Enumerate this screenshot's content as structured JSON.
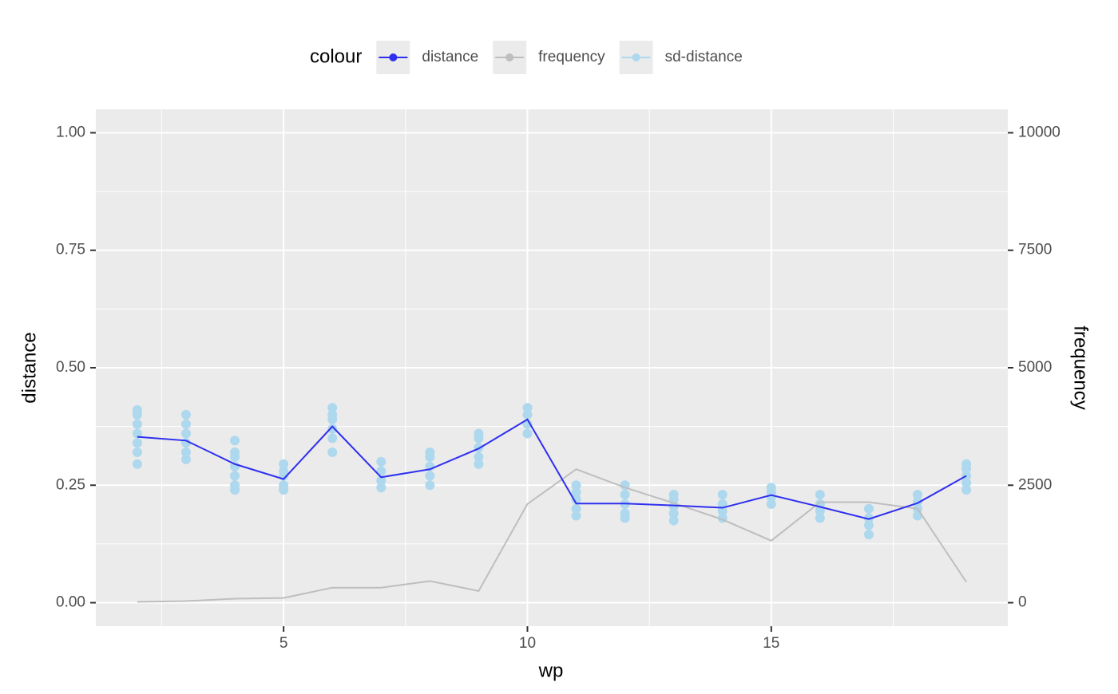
{
  "chart_data": {
    "type": "line",
    "x_label": "wp",
    "y_label": "distance",
    "y2_label": "frequency",
    "legend_title": "colour",
    "legend": "top",
    "grid": true,
    "xlim": [
      1.15,
      19.85
    ],
    "xticks": [
      5,
      10,
      15
    ],
    "ylim": [
      -0.05,
      1.05
    ],
    "yticks": [
      {
        "value": 0,
        "label": "0.00"
      },
      {
        "value": 0.25,
        "label": "0.25"
      },
      {
        "value": 0.5,
        "label": "0.50"
      },
      {
        "value": 0.75,
        "label": "0.75"
      },
      {
        "value": 1,
        "label": "1.00"
      }
    ],
    "y2lim": [
      -500,
      10500
    ],
    "y2ticks": [
      0,
      2500,
      5000,
      7500,
      10000
    ],
    "series": [
      {
        "name": "distance",
        "color": "#2f2ff0",
        "x": [
          2,
          3,
          4,
          5,
          6,
          7,
          8,
          9,
          10,
          11,
          12,
          13,
          14,
          15,
          16,
          17,
          18,
          19
        ],
        "values": [
          0.353,
          0.345,
          0.295,
          0.263,
          0.375,
          0.267,
          0.284,
          0.328,
          0.39,
          0.211,
          0.211,
          0.207,
          0.202,
          0.229,
          0.204,
          0.178,
          0.212,
          0.27
        ]
      },
      {
        "name": "frequency",
        "color": "#bebebe",
        "axis": "y2",
        "x": [
          2,
          3,
          4,
          5,
          6,
          7,
          8,
          9,
          10,
          11,
          12,
          13,
          14,
          15,
          16,
          17,
          18,
          19
        ],
        "values": [
          17,
          34,
          85,
          100,
          320,
          320,
          460,
          250,
          2100,
          2840,
          2450,
          2120,
          1770,
          1320,
          2140,
          2140,
          2000,
          440
        ]
      },
      {
        "name": "sd-distance",
        "color": "#add8ee",
        "type": "scatter",
        "x": [
          2,
          2,
          2,
          2,
          2,
          2,
          2,
          3,
          3,
          3,
          3,
          3,
          3,
          4,
          4,
          4,
          4,
          4,
          4,
          4,
          5,
          5,
          5,
          5,
          5,
          6,
          6,
          6,
          6,
          6,
          6,
          7,
          7,
          7,
          7,
          8,
          8,
          8,
          8,
          8,
          9,
          9,
          9,
          9,
          9,
          10,
          10,
          10,
          10,
          11,
          11,
          11,
          11,
          11,
          12,
          12,
          12,
          12,
          12,
          13,
          13,
          13,
          13,
          13,
          14,
          14,
          14,
          14,
          15,
          15,
          15,
          15,
          16,
          16,
          16,
          16,
          17,
          17,
          17,
          17,
          18,
          18,
          18,
          18,
          19,
          19,
          19,
          19,
          19
        ],
        "values": [
          0.295,
          0.32,
          0.34,
          0.36,
          0.38,
          0.4,
          0.41,
          0.305,
          0.32,
          0.34,
          0.36,
          0.38,
          0.4,
          0.24,
          0.25,
          0.27,
          0.29,
          0.31,
          0.32,
          0.345,
          0.24,
          0.25,
          0.27,
          0.28,
          0.295,
          0.32,
          0.35,
          0.37,
          0.39,
          0.4,
          0.415,
          0.245,
          0.26,
          0.28,
          0.3,
          0.25,
          0.27,
          0.29,
          0.31,
          0.32,
          0.295,
          0.31,
          0.33,
          0.35,
          0.36,
          0.36,
          0.38,
          0.4,
          0.415,
          0.185,
          0.2,
          0.22,
          0.235,
          0.25,
          0.18,
          0.19,
          0.21,
          0.23,
          0.25,
          0.175,
          0.19,
          0.205,
          0.22,
          0.23,
          0.18,
          0.195,
          0.21,
          0.23,
          0.21,
          0.225,
          0.235,
          0.245,
          0.18,
          0.195,
          0.21,
          0.23,
          0.145,
          0.165,
          0.18,
          0.2,
          0.185,
          0.2,
          0.215,
          0.23,
          0.24,
          0.255,
          0.27,
          0.285,
          0.295
        ]
      }
    ]
  }
}
